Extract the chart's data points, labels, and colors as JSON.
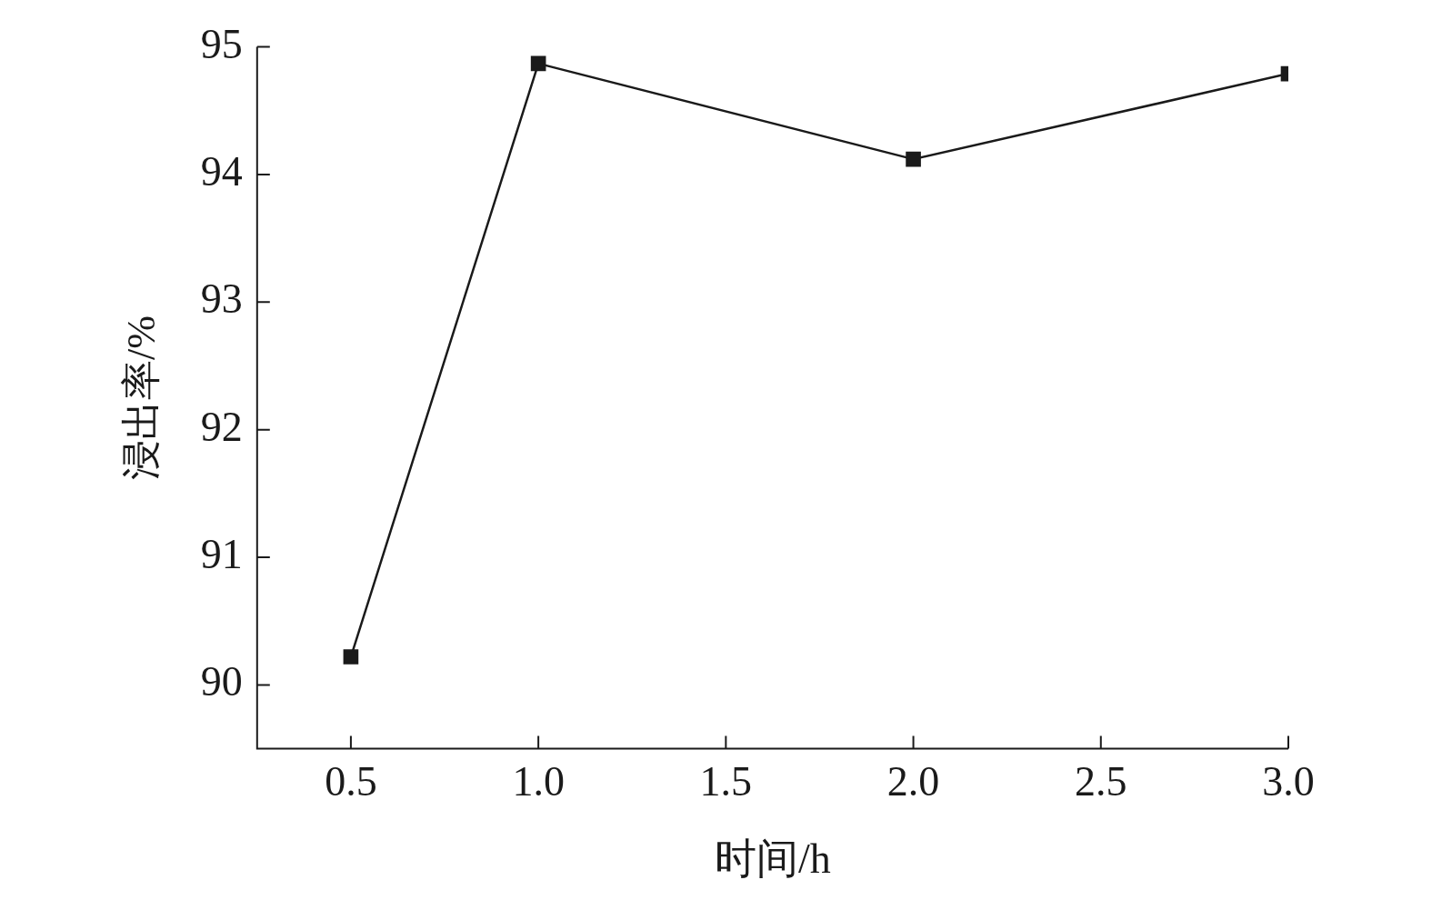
{
  "chart_data": {
    "type": "line",
    "xlabel": "时间/h",
    "ylabel": "浸出率/%",
    "x": [
      0.5,
      1.0,
      2.0,
      3.0
    ],
    "series": [
      {
        "color": "#1a1a1a",
        "values": [
          90.22,
          94.87,
          94.12,
          94.79
        ]
      }
    ],
    "xlim": [
      0.25,
      3.0
    ],
    "xticks": [
      {
        "value": 0.5,
        "label": "0.5"
      },
      {
        "value": 1.0,
        "label": "1.0"
      },
      {
        "value": 1.5,
        "label": "1.5"
      },
      {
        "value": 2.0,
        "label": "2.0"
      },
      {
        "value": 2.5,
        "label": "2.5"
      },
      {
        "value": 3.0,
        "label": "3.0"
      }
    ],
    "ylim": [
      89.5,
      95
    ],
    "yticks": [
      90,
      91,
      92,
      93,
      94,
      95
    ],
    "grid": false,
    "legend": false,
    "marker": "square",
    "line_style": "solid"
  }
}
